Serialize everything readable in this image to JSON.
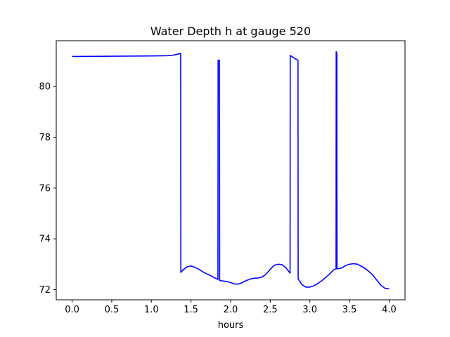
{
  "chart_data": {
    "type": "line",
    "title": "Water Depth h at gauge 520",
    "xlabel": "hours",
    "ylabel": "",
    "xlim": [
      -0.2,
      4.2
    ],
    "ylim": [
      71.6,
      81.8
    ],
    "xticks": [
      0.0,
      0.5,
      1.0,
      1.5,
      2.0,
      2.5,
      3.0,
      3.5,
      4.0
    ],
    "xtick_labels": [
      "0.0",
      "0.5",
      "1.0",
      "1.5",
      "2.0",
      "2.5",
      "3.0",
      "3.5",
      "4.0"
    ],
    "yticks": [
      72,
      74,
      76,
      78,
      80
    ],
    "ytick_labels": [
      "72",
      "74",
      "76",
      "78",
      "80"
    ],
    "grid": false,
    "legend": "none",
    "series": [
      {
        "color": "#0000ff",
        "x": [
          0.0,
          0.5,
          1.0,
          1.2,
          1.27,
          1.33,
          1.37,
          1.372,
          1.4,
          1.45,
          1.5,
          1.55,
          1.6,
          1.65,
          1.7,
          1.75,
          1.8,
          1.84,
          1.842,
          1.86,
          1.862,
          1.87,
          1.872,
          1.9,
          1.95,
          2.0,
          2.05,
          2.1,
          2.15,
          2.2,
          2.25,
          2.3,
          2.35,
          2.4,
          2.45,
          2.5,
          2.55,
          2.6,
          2.65,
          2.7,
          2.75,
          2.752,
          2.8,
          2.85,
          2.852,
          2.9,
          2.95,
          3.0,
          3.05,
          3.1,
          3.15,
          3.2,
          3.25,
          3.3,
          3.33,
          3.332,
          3.34,
          3.342,
          3.4,
          3.45,
          3.5,
          3.55,
          3.6,
          3.65,
          3.7,
          3.75,
          3.8,
          3.85,
          3.9,
          3.95,
          4.0
        ],
        "y": [
          81.18,
          81.19,
          81.2,
          81.21,
          81.23,
          81.27,
          81.3,
          72.68,
          72.78,
          72.9,
          72.93,
          72.88,
          72.8,
          72.7,
          72.62,
          72.55,
          72.46,
          72.4,
          81.04,
          81.02,
          72.36,
          72.35,
          72.36,
          72.34,
          72.32,
          72.28,
          72.22,
          72.22,
          72.28,
          72.36,
          72.42,
          72.45,
          72.46,
          72.5,
          72.62,
          72.8,
          72.96,
          73.0,
          72.98,
          72.85,
          72.65,
          81.22,
          81.12,
          81.03,
          72.42,
          72.2,
          72.1,
          72.1,
          72.15,
          72.24,
          72.35,
          72.48,
          72.62,
          72.78,
          72.82,
          81.37,
          81.3,
          72.82,
          72.85,
          72.95,
          73.0,
          73.02,
          73.0,
          72.92,
          72.83,
          72.7,
          72.55,
          72.35,
          72.16,
          72.05,
          72.03
        ]
      }
    ]
  }
}
